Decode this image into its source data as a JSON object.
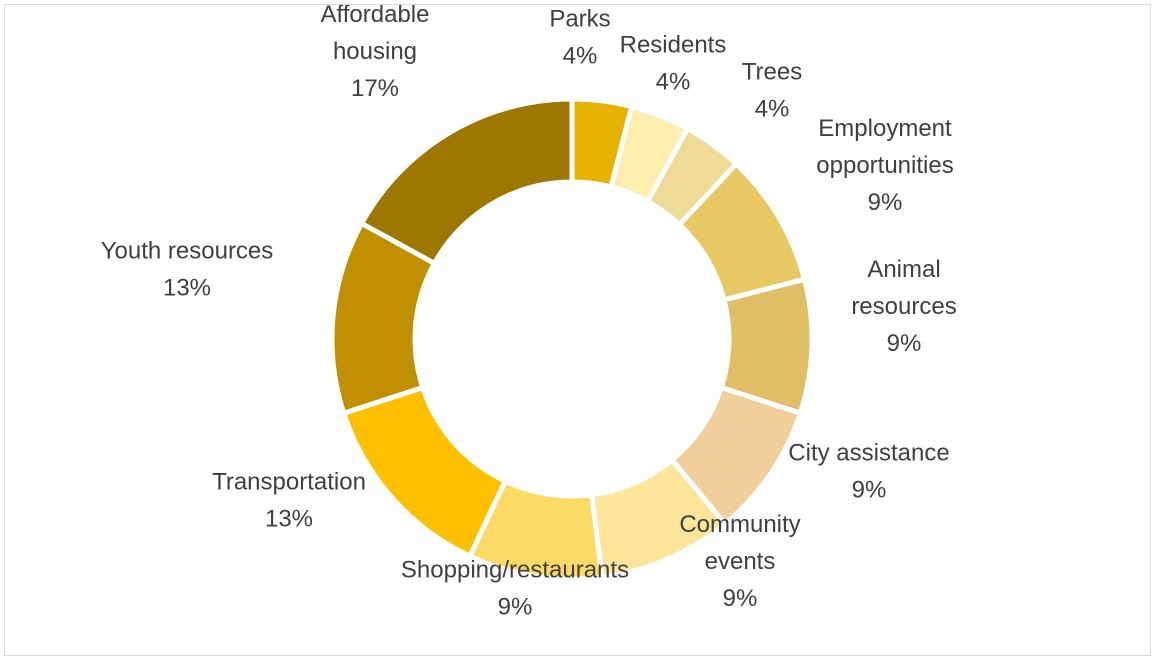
{
  "chart_data": {
    "type": "pie",
    "variant": "doughnut",
    "title": "",
    "legend": "none",
    "slices": [
      {
        "name": "Parks",
        "label_lines": [
          "Parks"
        ],
        "value": 4,
        "percent_label": "4%",
        "color": "#E8B200"
      },
      {
        "name": "Residents",
        "label_lines": [
          "Residents"
        ],
        "value": 4,
        "percent_label": "4%",
        "color": "#FDEEB0"
      },
      {
        "name": "Trees",
        "label_lines": [
          "Trees"
        ],
        "value": 4,
        "percent_label": "4%",
        "color": "#EDDB96"
      },
      {
        "name": "Employment opportunities",
        "label_lines": [
          "Employment",
          "opportunities"
        ],
        "value": 9,
        "percent_label": "9%",
        "color": "#E7C862"
      },
      {
        "name": "Animal resources",
        "label_lines": [
          "Animal",
          "resources"
        ],
        "value": 9,
        "percent_label": "9%",
        "color": "#E0BE66"
      },
      {
        "name": "City assistance",
        "label_lines": [
          "City assistance"
        ],
        "value": 9,
        "percent_label": "9%",
        "color": "#F0CF9A"
      },
      {
        "name": "Community events",
        "label_lines": [
          "Community",
          "events"
        ],
        "value": 9,
        "percent_label": "9%",
        "color": "#FEE59A"
      },
      {
        "name": "Shopping/restaurants",
        "label_lines": [
          "Shopping/restaurants"
        ],
        "value": 9,
        "percent_label": "9%",
        "color": "#FDD966"
      },
      {
        "name": "Transportation",
        "label_lines": [
          "Transportation"
        ],
        "value": 13,
        "percent_label": "13%",
        "color": "#FFC000"
      },
      {
        "name": "Youth resources",
        "label_lines": [
          "Youth resources"
        ],
        "value": 13,
        "percent_label": "13%",
        "color": "#C09000"
      },
      {
        "name": "Affordable housing",
        "label_lines": [
          "Affordable",
          "housing"
        ],
        "value": 17,
        "percent_label": "17%",
        "color": "#9E7700"
      }
    ]
  }
}
